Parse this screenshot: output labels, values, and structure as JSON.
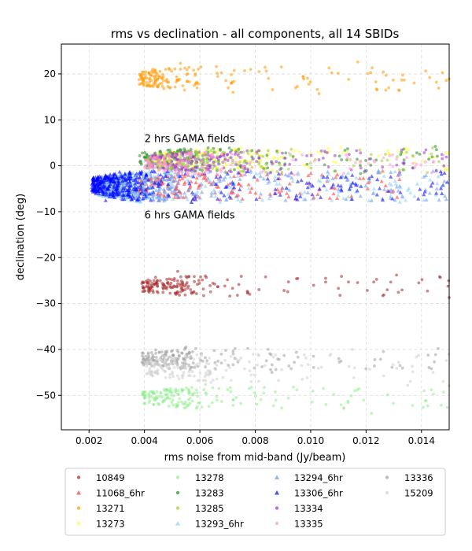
{
  "chart_data": {
    "type": "scatter",
    "title": "rms vs declination - all components, all 14 SBIDs",
    "xlabel": "rms noise from mid-band (Jy/beam)",
    "ylabel": "declination (deg)",
    "xlim": [
      0.001,
      0.015
    ],
    "ylim": [
      -57.5,
      26.5
    ],
    "xticks": [
      0.002,
      0.004,
      0.006,
      0.008,
      0.01,
      0.012,
      0.014
    ],
    "xtick_labels": [
      "0.002",
      "0.004",
      "0.006",
      "0.008",
      "0.010",
      "0.012",
      "0.014"
    ],
    "yticks": [
      20,
      10,
      0,
      -10,
      -20,
      -30,
      -40,
      -50
    ],
    "ytick_labels": [
      "20",
      "10",
      "0",
      "−10",
      "−20",
      "−30",
      "−40",
      "−50"
    ],
    "grid": true,
    "legend_position": "bottom",
    "annotations": [
      {
        "text": "2 hrs GAMA fields",
        "x": 0.004,
        "y": 5.2
      },
      {
        "text": "6 hrs GAMA fields",
        "x": 0.004,
        "y": -11.5
      }
    ],
    "series": [
      {
        "name": "10849",
        "marker": "circle",
        "color": "#a52a2a",
        "cluster": {
          "dec_center": -26.2,
          "dec_spread": 2.2,
          "rms_min": 0.0039,
          "rms_median": 0.0056,
          "rms_max": 0.015
        },
        "points": [
          [
            0.0041,
            -25.5
          ],
          [
            0.0044,
            -24.3
          ],
          [
            0.0048,
            -26.8
          ],
          [
            0.0052,
            -23.0
          ],
          [
            0.0057,
            -27.6
          ],
          [
            0.0062,
            -24.0
          ],
          [
            0.0069,
            -26.2
          ],
          [
            0.0078,
            -28.0
          ],
          [
            0.0092,
            -25.3
          ],
          [
            0.011,
            -26.7
          ],
          [
            0.0131,
            -23.8
          ],
          [
            0.015,
            -28.7
          ]
        ]
      },
      {
        "name": "11068_6hr",
        "marker": "triangle",
        "color": "#ff3333",
        "cluster": {
          "dec_center": -4.5,
          "dec_spread": 3.0,
          "rms_min": 0.0038,
          "rms_median": 0.0058,
          "rms_max": 0.0136
        },
        "points": [
          [
            0.0046,
            -3.0
          ],
          [
            0.0052,
            -2.0
          ],
          [
            0.0066,
            -4.6
          ],
          [
            0.0074,
            -4.0
          ],
          [
            0.0088,
            -5.2
          ],
          [
            0.0106,
            -3.4
          ],
          [
            0.0126,
            -1.2
          ]
        ]
      },
      {
        "name": "13271",
        "marker": "circle",
        "color": "#ff9900",
        "cluster": {
          "dec_center": 19.0,
          "dec_spread": 2.6,
          "rms_min": 0.0038,
          "rms_median": 0.0052,
          "rms_max": 0.015
        },
        "points": [
          [
            0.0039,
            19.2
          ],
          [
            0.0043,
            21.0
          ],
          [
            0.0047,
            16.8
          ],
          [
            0.0053,
            22.3
          ],
          [
            0.0058,
            17.5
          ],
          [
            0.0066,
            21.6
          ],
          [
            0.0072,
            16.0
          ],
          [
            0.0084,
            20.6
          ],
          [
            0.0103,
            15.7
          ],
          [
            0.0117,
            22.6
          ],
          [
            0.0132,
            16.4
          ],
          [
            0.015,
            18.9
          ]
        ]
      },
      {
        "name": "13273",
        "marker": "circle",
        "color": "#ffff33",
        "cluster": {
          "dec_center": 1.5,
          "dec_spread": 2.5,
          "rms_min": 0.0044,
          "rms_median": 0.0072,
          "rms_max": 0.015
        },
        "points": [
          [
            0.0073,
            3.6
          ],
          [
            0.0082,
            1.2
          ],
          [
            0.0096,
            3.0
          ],
          [
            0.0113,
            -2.6
          ],
          [
            0.0134,
            3.8
          ],
          [
            0.0148,
            0.0
          ]
        ]
      },
      {
        "name": "13278",
        "marker": "circle",
        "color": "#90ee90",
        "cluster": {
          "dec_center": -50.5,
          "dec_spread": 2.4,
          "rms_min": 0.0039,
          "rms_median": 0.0056,
          "rms_max": 0.015
        },
        "points": [
          [
            0.004,
            -50.6
          ],
          [
            0.0045,
            -51.8
          ],
          [
            0.0049,
            -49.0
          ],
          [
            0.0055,
            -52.6
          ],
          [
            0.0062,
            -47.6
          ],
          [
            0.0072,
            -52.2
          ],
          [
            0.0083,
            -49.5
          ],
          [
            0.0095,
            -48.8
          ],
          [
            0.0112,
            -52.7
          ],
          [
            0.0122,
            -53.9
          ],
          [
            0.0141,
            -49.0
          ],
          [
            0.015,
            -47.9
          ]
        ]
      },
      {
        "name": "13283",
        "marker": "circle",
        "color": "#228b22",
        "cluster": {
          "dec_center": 1.3,
          "dec_spread": 2.6,
          "rms_min": 0.0038,
          "rms_median": 0.0056,
          "rms_max": 0.015
        },
        "points": [
          [
            0.0041,
            -0.5
          ],
          [
            0.0045,
            1.6
          ],
          [
            0.0052,
            3.3
          ],
          [
            0.0062,
            2.4
          ],
          [
            0.0074,
            3.6
          ],
          [
            0.0091,
            2.8
          ],
          [
            0.0118,
            -1.7
          ],
          [
            0.0145,
            4.2
          ]
        ]
      },
      {
        "name": "13285",
        "marker": "circle",
        "color": "#9acd32",
        "cluster": {
          "dec_center": 1.0,
          "dec_spread": 2.6,
          "rms_min": 0.004,
          "rms_median": 0.0066,
          "rms_max": 0.015
        },
        "points": [
          [
            0.0064,
            3.3
          ],
          [
            0.0078,
            0.4
          ],
          [
            0.0093,
            3.6
          ],
          [
            0.0109,
            -1.2
          ],
          [
            0.0127,
            2.5
          ],
          [
            0.0144,
            3.9
          ]
        ]
      },
      {
        "name": "13293_6hr",
        "marker": "triangle",
        "color": "#87cefa",
        "cluster": {
          "dec_center": -4.6,
          "dec_spread": 3.4,
          "rms_min": 0.0023,
          "rms_median": 0.0038,
          "rms_max": 0.015
        },
        "points": [
          [
            0.0025,
            -3.6
          ],
          [
            0.003,
            -6.8
          ],
          [
            0.0036,
            -1.6
          ],
          [
            0.0048,
            -6.4
          ],
          [
            0.0063,
            -3.0
          ],
          [
            0.0085,
            -7.2
          ],
          [
            0.0104,
            -2.6
          ],
          [
            0.0129,
            -5.6
          ]
        ]
      },
      {
        "name": "13294_6hr",
        "marker": "triangle",
        "color": "#6495ed",
        "cluster": {
          "dec_center": -4.3,
          "dec_spread": 3.4,
          "rms_min": 0.0024,
          "rms_median": 0.0042,
          "rms_max": 0.015
        },
        "points": [
          [
            0.0027,
            -2.4
          ],
          [
            0.0035,
            -5.8
          ],
          [
            0.0045,
            -7.6
          ],
          [
            0.006,
            -2.2
          ],
          [
            0.0082,
            -6.2
          ],
          [
            0.01,
            -4.5
          ],
          [
            0.0122,
            -7.6
          ]
        ]
      },
      {
        "name": "13306_6hr",
        "marker": "triangle",
        "color": "#0000ff",
        "cluster": {
          "dec_center": -4.4,
          "dec_spread": 3.2,
          "rms_min": 0.0021,
          "rms_median": 0.0034,
          "rms_max": 0.015
        },
        "points": [
          [
            0.0022,
            -4.4
          ],
          [
            0.0026,
            -7.6
          ],
          [
            0.0031,
            -1.4
          ],
          [
            0.0038,
            -7.4
          ],
          [
            0.0046,
            -3.5
          ],
          [
            0.0057,
            -8.0
          ],
          [
            0.007,
            -1.8
          ],
          [
            0.0089,
            -6.4
          ],
          [
            0.0106,
            -2.5
          ],
          [
            0.0126,
            -7.5
          ],
          [
            0.0144,
            -3.8
          ]
        ]
      },
      {
        "name": "13334",
        "marker": "circle",
        "color": "#9932cc",
        "cluster": {
          "dec_center": 1.0,
          "dec_spread": 2.6,
          "rms_min": 0.0042,
          "rms_median": 0.0066,
          "rms_max": 0.015
        },
        "points": [
          [
            0.007,
            2.5
          ],
          [
            0.0089,
            -0.8
          ],
          [
            0.0103,
            1.3
          ],
          [
            0.0118,
            2.8
          ],
          [
            0.0137,
            -0.5
          ],
          [
            0.0149,
            1.9
          ]
        ]
      },
      {
        "name": "13335",
        "marker": "circle",
        "color": "#ff99cc",
        "cluster": {
          "dec_center": 0.5,
          "dec_spread": 2.6,
          "rms_min": 0.004,
          "rms_median": 0.0058,
          "rms_max": 0.015
        },
        "points": [
          [
            0.0051,
            -0.9
          ],
          [
            0.006,
            -1.8
          ],
          [
            0.0075,
            1.8
          ],
          [
            0.0094,
            -2.0
          ],
          [
            0.0121,
            0.4
          ]
        ]
      },
      {
        "name": "13336",
        "marker": "circle",
        "color": "#a0a0a0",
        "cluster": {
          "dec_center": -42.0,
          "dec_spread": 2.4,
          "rms_min": 0.0039,
          "rms_median": 0.0055,
          "rms_max": 0.015
        },
        "points": [
          [
            0.004,
            -42.3
          ],
          [
            0.0044,
            -40.1
          ],
          [
            0.0049,
            -44.2
          ],
          [
            0.0055,
            -39.5
          ],
          [
            0.0062,
            -43.8
          ],
          [
            0.0072,
            -40.4
          ],
          [
            0.0086,
            -45.0
          ],
          [
            0.0101,
            -41.5
          ],
          [
            0.0123,
            -43.6
          ],
          [
            0.0146,
            -39.8
          ]
        ]
      },
      {
        "name": "15209",
        "marker": "circle",
        "color": "#d0d0d0",
        "cluster": {
          "dec_center": -44.0,
          "dec_spread": 3.0,
          "rms_min": 0.004,
          "rms_median": 0.006,
          "rms_max": 0.015
        },
        "points": [
          [
            0.0064,
            -47.2
          ],
          [
            0.0081,
            -41.1
          ],
          [
            0.0097,
            -46.5
          ],
          [
            0.0115,
            -40.0
          ],
          [
            0.0135,
            -47.8
          ],
          [
            0.0149,
            -42.4
          ]
        ]
      }
    ]
  }
}
